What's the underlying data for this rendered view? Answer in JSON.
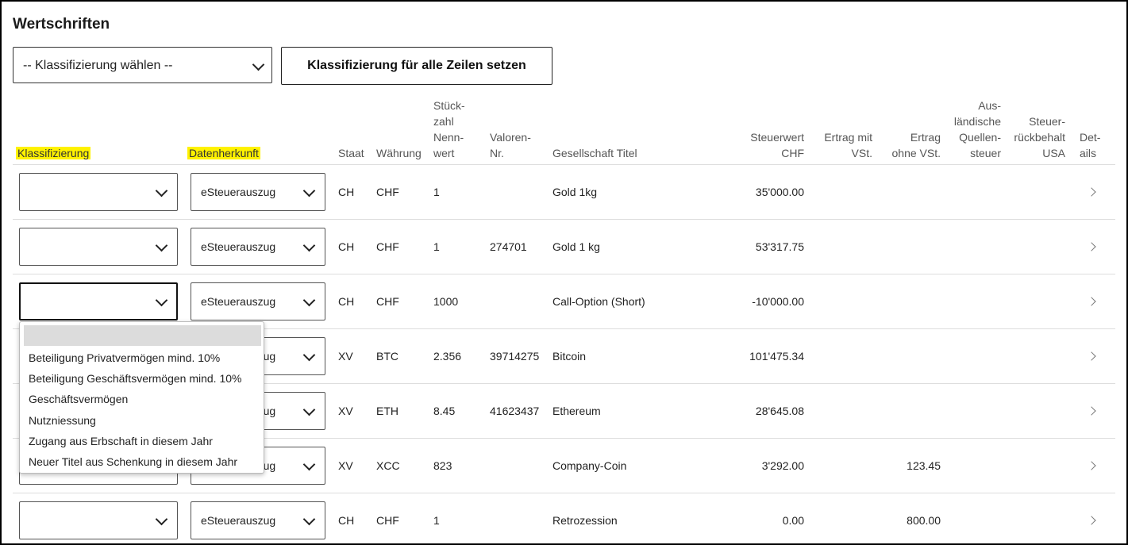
{
  "page_title": "Wertschriften",
  "top_select": {
    "value": "-- Klassifizierung wählen --"
  },
  "top_button": {
    "label": "Klassifizierung für alle Zeilen setzen"
  },
  "colors": {
    "highlight": "#fff200",
    "border": "#000000"
  },
  "headers": {
    "klassifizierung": "Klassifizierung",
    "datenherkunft": "Datenherkunft",
    "staat": "Staat",
    "waehrung": "Währung",
    "stueckzahl": [
      "Stück-",
      "zahl",
      "Nenn-",
      "wert"
    ],
    "valoren": [
      "Valoren-",
      "Nr."
    ],
    "titel": "Gesellschaft Titel",
    "steuerwert": [
      "Steuerwert",
      "CHF"
    ],
    "ertrag_mit": [
      "Ertrag mit",
      "VSt."
    ],
    "ertrag_ohne": [
      "Ertrag",
      "ohne VSt."
    ],
    "quellensteuer": [
      "Aus-",
      "ländische",
      "Quellen-",
      "steuer"
    ],
    "rueckbehalt": [
      "Steuer-",
      "rückbehalt",
      "USA"
    ],
    "details": [
      "Det-",
      "ails"
    ]
  },
  "rows": [
    {
      "klass": "",
      "herkunft": "eSteuerauszug",
      "staat": "CH",
      "waehrung": "CHF",
      "stueck": "1",
      "valoren": "",
      "titel": "Gold 1kg",
      "steuerwert": "35'000.00",
      "ertrag_mit": "",
      "ertrag_ohne": ""
    },
    {
      "klass": "",
      "herkunft": "eSteuerauszug",
      "staat": "CH",
      "waehrung": "CHF",
      "stueck": "1",
      "valoren": "274701",
      "titel": "Gold 1 kg",
      "steuerwert": "53'317.75",
      "ertrag_mit": "",
      "ertrag_ohne": ""
    },
    {
      "klass": "",
      "herkunft": "eSteuerauszug",
      "staat": "CH",
      "waehrung": "CHF",
      "stueck": "1000",
      "valoren": "",
      "titel": "Call-Option (Short)",
      "steuerwert": "-10'000.00",
      "ertrag_mit": "",
      "ertrag_ohne": ""
    },
    {
      "klass": "",
      "herkunft": "eSteuerauszug",
      "staat": "XV",
      "waehrung": "BTC",
      "stueck": "2.356",
      "valoren": "39714275",
      "titel": "Bitcoin",
      "steuerwert": "101'475.34",
      "ertrag_mit": "",
      "ertrag_ohne": ""
    },
    {
      "klass": "",
      "herkunft": "eSteuerauszug",
      "staat": "XV",
      "waehrung": "ETH",
      "stueck": "8.45",
      "valoren": "41623437",
      "titel": "Ethereum",
      "steuerwert": "28'645.08",
      "ertrag_mit": "",
      "ertrag_ohne": ""
    },
    {
      "klass": "",
      "herkunft": "eSteuerauszug",
      "staat": "XV",
      "waehrung": "XCC",
      "stueck": "823",
      "valoren": "",
      "titel": "Company-Coin",
      "steuerwert": "3'292.00",
      "ertrag_mit": "",
      "ertrag_ohne": "123.45"
    },
    {
      "klass": "",
      "herkunft": "eSteuerauszug",
      "staat": "CH",
      "waehrung": "CHF",
      "stueck": "1",
      "valoren": "",
      "titel": "Retrozession",
      "steuerwert": "0.00",
      "ertrag_mit": "",
      "ertrag_ohne": "800.00"
    }
  ],
  "dropdown_options": [
    "",
    "Beteiligung Privatvermögen mind. 10%",
    "Beteiligung Geschäftsvermögen mind. 10%",
    "Geschäftsvermögen",
    "Nutzniessung",
    "Zugang aus Erbschaft in diesem Jahr",
    "Neuer Titel aus Schenkung in diesem Jahr"
  ],
  "icons": {
    "select_chevron": "chevron-down-icon",
    "row_details": "chevron-right-icon"
  }
}
